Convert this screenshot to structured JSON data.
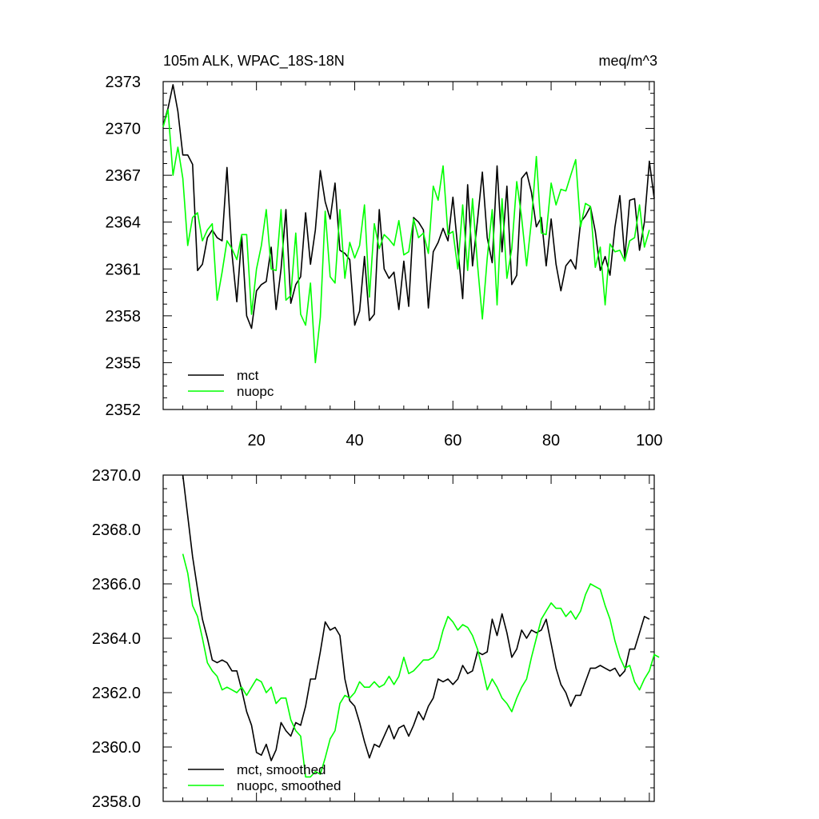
{
  "chart_data": [
    {
      "type": "line",
      "title": "105m ALK, WPAC_18S-18N",
      "units": "meq/m^3",
      "x_range": [
        1,
        101
      ],
      "ylim": [
        2352,
        2373
      ],
      "grid": false,
      "legend_position": "bottom-left",
      "x_ticks": [
        20,
        40,
        60,
        80,
        100
      ],
      "x_tick_labels": [
        "20",
        "40",
        "60",
        "80",
        "100"
      ],
      "y_ticks": [
        2352,
        2355,
        2358,
        2361,
        2364,
        2367,
        2370,
        2373
      ],
      "y_tick_labels": [
        "2352",
        "2355",
        "2358",
        "2361",
        "2364",
        "2367",
        "2370",
        "2373"
      ],
      "series": [
        {
          "name": "mct",
          "color": "#000000",
          "values": [
            2370.2,
            2371.3,
            2372.8,
            2371.1,
            2368.3,
            2368.3,
            2367.7,
            2360.9,
            2361.3,
            2363.0,
            2363.5,
            2363.0,
            2362.8,
            2367.5,
            2362.0,
            2358.9,
            2363.1,
            2358.0,
            2357.2,
            2359.6,
            2360.0,
            2360.2,
            2362.4,
            2358.4,
            2361.0,
            2364.8,
            2358.8,
            2360.0,
            2360.5,
            2364.6,
            2361.3,
            2363.5,
            2367.3,
            2365.3,
            2364.2,
            2366.5,
            2362.2,
            2362.0,
            2361.6,
            2357.4,
            2358.3,
            2361.8,
            2357.7,
            2358.1,
            2364.8,
            2361.0,
            2360.4,
            2360.8,
            2358.4,
            2361.5,
            2358.6,
            2364.3,
            2364.0,
            2363.5,
            2358.5,
            2362.1,
            2362.7,
            2363.6,
            2362.8,
            2365.6,
            2362.3,
            2359.1,
            2366.4,
            2361.2,
            2364.1,
            2367.2,
            2363.0,
            2361.4,
            2367.6,
            2362.1,
            2366.3,
            2360.0,
            2360.6,
            2366.8,
            2367.2,
            2365.9,
            2363.7,
            2364.3,
            2361.2,
            2364.2,
            2361.3,
            2359.6,
            2361.2,
            2361.6,
            2361.0,
            2364.0,
            2364.4,
            2365.0,
            2363.4,
            2360.9,
            2361.8,
            2360.6,
            2363.7,
            2365.7,
            2361.7,
            2365.4,
            2365.5,
            2362.2,
            2364.0,
            2367.9,
            2365.5
          ]
        },
        {
          "name": "nuopc",
          "color": "#00ff00",
          "values": [
            2370.1,
            2371.2,
            2367.0,
            2368.8,
            2366.8,
            2362.5,
            2364.3,
            2364.6,
            2362.8,
            2363.5,
            2363.9,
            2359.0,
            2360.8,
            2362.8,
            2362.3,
            2361.6,
            2363.2,
            2363.2,
            2358.1,
            2361.0,
            2362.5,
            2364.8,
            2361.0,
            2360.9,
            2364.8,
            2359.0,
            2359.3,
            2363.3,
            2358.1,
            2357.4,
            2360.1,
            2355.0,
            2357.9,
            2364.7,
            2360.5,
            2360.1,
            2364.8,
            2360.4,
            2362.7,
            2361.7,
            2362.5,
            2365.1,
            2359.2,
            2363.9,
            2362.3,
            2363.2,
            2362.9,
            2362.5,
            2364.1,
            2361.9,
            2362.1,
            2364.2,
            2363.0,
            2363.3,
            2362.0,
            2366.3,
            2365.4,
            2367.6,
            2363.2,
            2363.4,
            2361.0,
            2365.1,
            2360.9,
            2365.5,
            2361.3,
            2357.8,
            2361.7,
            2364.8,
            2358.7,
            2365.5,
            2360.4,
            2362.3,
            2366.6,
            2364.3,
            2361.2,
            2364.1,
            2368.2,
            2363.3,
            2363.2,
            2366.5,
            2365.1,
            2366.1,
            2366.0,
            2367.0,
            2368.0,
            2363.7,
            2365.2,
            2365.0,
            2361.1,
            2362.4,
            2358.7,
            2362.6,
            2362.1,
            2362.2,
            2361.5,
            2362.8,
            2363.0,
            2365.1,
            2362.4,
            2363.5
          ]
        }
      ]
    },
    {
      "type": "line",
      "title": "",
      "x_range": [
        1,
        101
      ],
      "ylim": [
        2358.0,
        2370.0
      ],
      "grid": false,
      "legend_position": "bottom-left",
      "x_ticks": [
        20,
        40,
        60,
        80,
        100
      ],
      "y_ticks": [
        2358.0,
        2360.0,
        2362.0,
        2364.0,
        2366.0,
        2368.0,
        2370.0
      ],
      "y_tick_labels": [
        "2358.0",
        "2360.0",
        "2362.0",
        "2364.0",
        "2366.0",
        "2368.0",
        "2370.0"
      ],
      "series": [
        {
          "name": "mct, smoothed",
          "color": "#000000",
          "x_start": 5,
          "values": [
            2370.0,
            2368.5,
            2367.0,
            2365.8,
            2364.7,
            2364.0,
            2363.2,
            2363.1,
            2363.2,
            2363.1,
            2362.8,
            2362.8,
            2362.1,
            2361.3,
            2360.8,
            2359.8,
            2359.7,
            2360.1,
            2359.5,
            2359.9,
            2360.9,
            2360.6,
            2360.4,
            2360.9,
            2360.8,
            2361.5,
            2362.5,
            2362.5,
            2363.5,
            2364.6,
            2364.3,
            2364.4,
            2364.1,
            2362.5,
            2361.7,
            2361.5,
            2360.9,
            2360.2,
            2359.6,
            2360.1,
            2360.0,
            2360.4,
            2360.8,
            2360.3,
            2360.7,
            2360.8,
            2360.4,
            2360.8,
            2361.3,
            2361.0,
            2361.5,
            2361.8,
            2362.5,
            2362.4,
            2362.5,
            2362.3,
            2362.5,
            2363.0,
            2362.7,
            2362.8,
            2363.5,
            2363.4,
            2363.5,
            2364.7,
            2364.1,
            2364.9,
            2364.2,
            2363.3,
            2363.6,
            2364.3,
            2364.0,
            2364.3,
            2364.2,
            2364.3,
            2364.7,
            2363.8,
            2362.9,
            2362.3,
            2362.0,
            2361.5,
            2361.9,
            2361.9,
            2362.4,
            2362.9,
            2362.9,
            2363.0,
            2362.9,
            2362.8,
            2362.9,
            2362.6,
            2362.8,
            2363.6,
            2363.6,
            2364.2,
            2364.8,
            2364.7
          ]
        },
        {
          "name": "nuopc, smoothed",
          "color": "#00ff00",
          "x_start": 5,
          "values": [
            2367.1,
            2366.4,
            2365.2,
            2364.8,
            2364.0,
            2363.1,
            2362.8,
            2362.6,
            2362.1,
            2362.2,
            2362.1,
            2362.0,
            2362.2,
            2361.9,
            2362.2,
            2362.5,
            2362.4,
            2362.0,
            2362.2,
            2361.6,
            2361.8,
            2361.8,
            2361.0,
            2360.6,
            2360.4,
            2358.9,
            2358.9,
            2359.1,
            2359.0,
            2359.6,
            2360.3,
            2360.6,
            2361.6,
            2361.9,
            2361.8,
            2362.0,
            2362.4,
            2362.2,
            2362.2,
            2362.4,
            2362.2,
            2362.3,
            2362.6,
            2362.3,
            2362.6,
            2363.3,
            2362.7,
            2362.8,
            2363.0,
            2363.2,
            2363.2,
            2363.3,
            2363.6,
            2364.3,
            2364.8,
            2364.6,
            2364.3,
            2364.5,
            2364.4,
            2364.1,
            2363.6,
            2362.9,
            2362.1,
            2362.5,
            2362.2,
            2361.8,
            2361.6,
            2361.3,
            2361.8,
            2362.2,
            2362.5,
            2363.3,
            2364.0,
            2364.7,
            2365.0,
            2365.3,
            2365.1,
            2365.1,
            2364.8,
            2365.0,
            2364.7,
            2365.0,
            2365.6,
            2366.0,
            2365.9,
            2365.8,
            2365.2,
            2364.7,
            2363.9,
            2363.3,
            2362.9,
            2363.0,
            2362.4,
            2362.1,
            2362.5,
            2362.8,
            2363.4,
            2363.3
          ]
        }
      ]
    }
  ]
}
